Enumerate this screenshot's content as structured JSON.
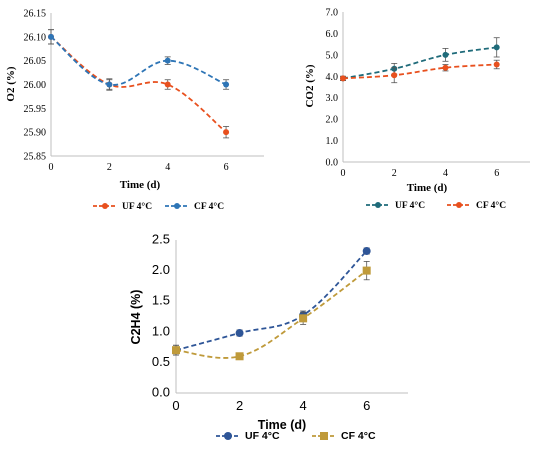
{
  "chart_data": [
    {
      "type": "line",
      "xlabel": "Time (d)",
      "ylabel": "O2 (%)",
      "x": [
        0,
        2,
        4,
        6
      ],
      "ylim": [
        25.85,
        26.15
      ],
      "yticks": [
        "25.85",
        "25.90",
        "25.95",
        "26.00",
        "26.05",
        "26.10",
        "26.15"
      ],
      "xticks": [
        "0",
        "2",
        "4",
        "6"
      ],
      "grid": false,
      "legend": "bottom",
      "series": [
        {
          "name": "UF 4°C",
          "color": "#e8501e",
          "marker": "circle",
          "values": [
            26.1,
            26.0,
            26.0,
            25.9
          ],
          "errors": [
            0.015,
            0.01,
            0.01,
            0.012
          ]
        },
        {
          "name": "CF 4°C",
          "color": "#2e75b6",
          "marker": "circle",
          "values": [
            26.1,
            26.0,
            26.05,
            26.0
          ],
          "errors": [
            0.015,
            0.012,
            0.008,
            0.01
          ]
        }
      ]
    },
    {
      "type": "line",
      "xlabel": "Time (d)",
      "ylabel": "CO2 (%)",
      "x": [
        0,
        2,
        4,
        6
      ],
      "ylim": [
        0,
        7
      ],
      "yticks": [
        "0.0",
        "1.0",
        "2.0",
        "3.0",
        "4.0",
        "5.0",
        "6.0",
        "7.0"
      ],
      "xticks": [
        "0",
        "2",
        "4",
        "6"
      ],
      "grid": false,
      "legend": "bottom",
      "series": [
        {
          "name": "UF 4°C",
          "color": "#1f6b7a",
          "marker": "circle",
          "values": [
            3.9,
            4.35,
            5.0,
            5.35
          ],
          "errors": [
            0.1,
            0.25,
            0.3,
            0.45
          ]
        },
        {
          "name": "CF 4°C",
          "color": "#e8501e",
          "marker": "circle",
          "values": [
            3.9,
            4.05,
            4.4,
            4.55
          ],
          "errors": [
            0.1,
            0.35,
            0.15,
            0.2
          ]
        }
      ]
    },
    {
      "type": "line",
      "xlabel": "Time (d)",
      "ylabel": "C2H4 (%)",
      "x": [
        0,
        2,
        4,
        6
      ],
      "ylim": [
        0,
        2.5
      ],
      "yticks": [
        "0.0",
        "0.5",
        "1.0",
        "1.5",
        "2.0",
        "2.5"
      ],
      "xticks": [
        "0",
        "2",
        "4",
        "6"
      ],
      "grid": false,
      "legend": "bottom",
      "series": [
        {
          "name": "UF 4°C",
          "color": "#2e5597",
          "marker": "circle",
          "values": [
            0.7,
            0.98,
            1.27,
            2.32
          ],
          "errors": [
            0.08,
            0.05,
            0.07,
            0.05
          ]
        },
        {
          "name": "CF 4°C",
          "color": "#bf9a3a",
          "marker": "square",
          "values": [
            0.7,
            0.6,
            1.22,
            2.0
          ],
          "errors": [
            0.08,
            0.03,
            0.1,
            0.15
          ]
        }
      ]
    }
  ]
}
